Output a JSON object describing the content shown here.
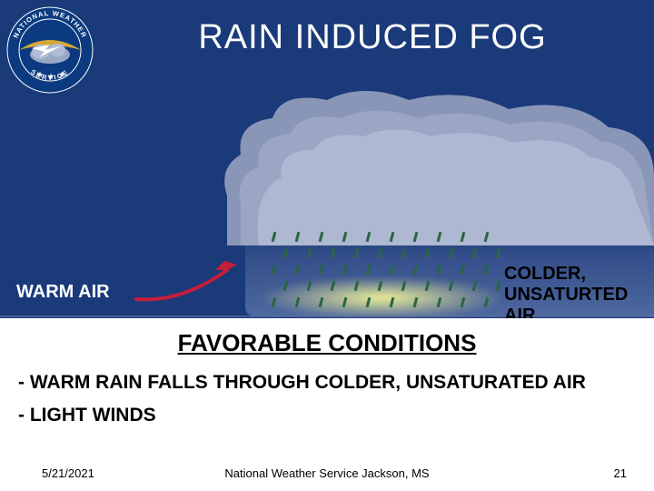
{
  "title": "RAIN INDUCED FOG",
  "labels": {
    "warm_air": "WARM AIR",
    "colder_air_l1": "COLDER,",
    "colder_air_l2": "UNSATURTED",
    "colder_air_l3": "AIR"
  },
  "conditions": {
    "heading": "FAVORABLE CONDITIONS",
    "bullet1": "- WARM RAIN FALLS THROUGH COLDER, UNSATURATED AIR",
    "bullet2": "- LIGHT WINDS"
  },
  "footer": {
    "date": "5/21/2021",
    "center": "National Weather Service Jackson, MS",
    "page": "21"
  },
  "colors": {
    "background": "#1a3a7a",
    "cloud_light": "#b0b8d0",
    "cloud_mid": "#8a96b8",
    "cloud_dark": "#6a7aa0",
    "rain": "#2a6640",
    "arrow": "#c41e3a",
    "fog": "#ffff96",
    "text_white": "#ffffff",
    "text_black": "#000000",
    "logo_outer": "#0b3a80",
    "logo_gold": "#d4a838",
    "logo_cloud": "#9aa8c4"
  },
  "logo": {
    "ring_text_top": "NATIONAL WEATHER",
    "ring_text_bottom": "SERVICE"
  },
  "rain_layout": {
    "rows": 5,
    "cols": 10,
    "hgap": 26,
    "vgap": 18,
    "stagger": 13
  }
}
